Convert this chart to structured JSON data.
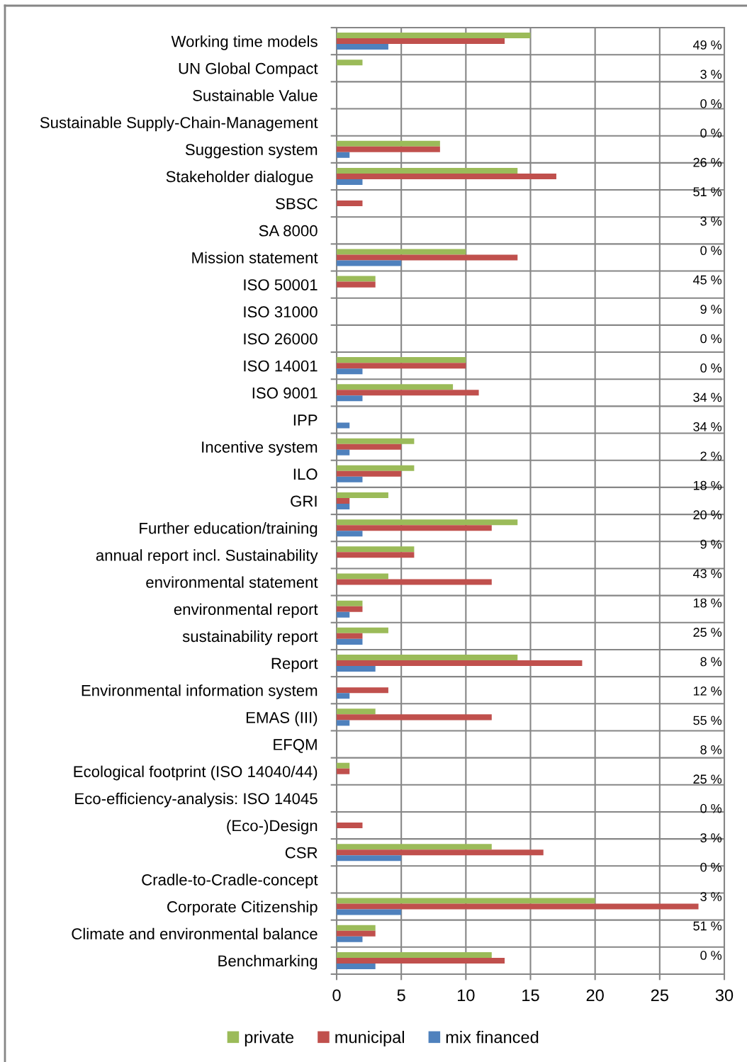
{
  "chart_data": {
    "type": "bar",
    "orientation": "horizontal",
    "categories": [
      "Working time models",
      "UN Global Compact",
      "Sustainable Value",
      "Sustainable Supply-Chain-Management",
      "Suggestion system",
      "Stakeholder dialogue ",
      "SBSC",
      "SA 8000",
      "Mission statement",
      "ISO 50001",
      "ISO 31000",
      "ISO 26000",
      "ISO 14001",
      "ISO 9001",
      "IPP",
      "Incentive system",
      "ILO",
      "GRI",
      "Further education/training",
      "annual report incl. Sustainability",
      "environmental statement",
      "environmental report",
      "sustainability report",
      "Report",
      "Environmental information system",
      "EMAS (III)",
      "EFQM",
      "Ecological footprint (ISO 14040/44)",
      "Eco-efficiency-analysis: ISO 14045",
      "(Eco-)Design",
      "CSR",
      "Cradle-to-Cradle-concept",
      "Corporate Citizenship",
      "Climate and environmental balance",
      "Benchmarking"
    ],
    "series": [
      {
        "name": "private",
        "color": "#9bbb59",
        "values": [
          15,
          2,
          0,
          0,
          8,
          14,
          0,
          0,
          10,
          3,
          0,
          0,
          10,
          9,
          0,
          6,
          6,
          4,
          14,
          6,
          4,
          2,
          4,
          14,
          0,
          3,
          0,
          1,
          0,
          0,
          12,
          0,
          20,
          3,
          12
        ]
      },
      {
        "name": "municipal",
        "color": "#c0504d",
        "values": [
          13,
          0,
          0,
          0,
          8,
          17,
          2,
          0,
          14,
          3,
          0,
          0,
          10,
          11,
          0,
          5,
          5,
          1,
          12,
          6,
          12,
          2,
          2,
          19,
          4,
          12,
          0,
          1,
          0,
          2,
          16,
          0,
          28,
          3,
          13
        ]
      },
      {
        "name": "mix financed",
        "color": "#4f81bd",
        "values": [
          4,
          0,
          0,
          0,
          1,
          2,
          0,
          0,
          5,
          0,
          0,
          0,
          2,
          2,
          1,
          1,
          2,
          1,
          2,
          0,
          0,
          1,
          2,
          3,
          1,
          1,
          0,
          0,
          0,
          0,
          5,
          0,
          5,
          2,
          3
        ]
      }
    ],
    "xlim": [
      0,
      30
    ],
    "xticks": [
      0,
      5,
      10,
      15,
      20,
      25,
      30
    ],
    "grid": true,
    "legend": "bottom",
    "annotations": [
      "49 %",
      "3 %",
      "0 %",
      "0 %",
      "26 %",
      "51 %",
      "3 %",
      "0 %",
      "45 %",
      "9 %",
      "0 %",
      "0 %",
      "34 %",
      "34 %",
      "2 %",
      "18 %",
      "20 %",
      "9 %",
      "43 %",
      "18 %",
      "25 %",
      "8 %",
      "12 %",
      "55 %",
      "8 %",
      "25 %",
      "0 %",
      "3 %",
      "0 %",
      "3 %",
      "51 %",
      "0 %"
    ]
  }
}
